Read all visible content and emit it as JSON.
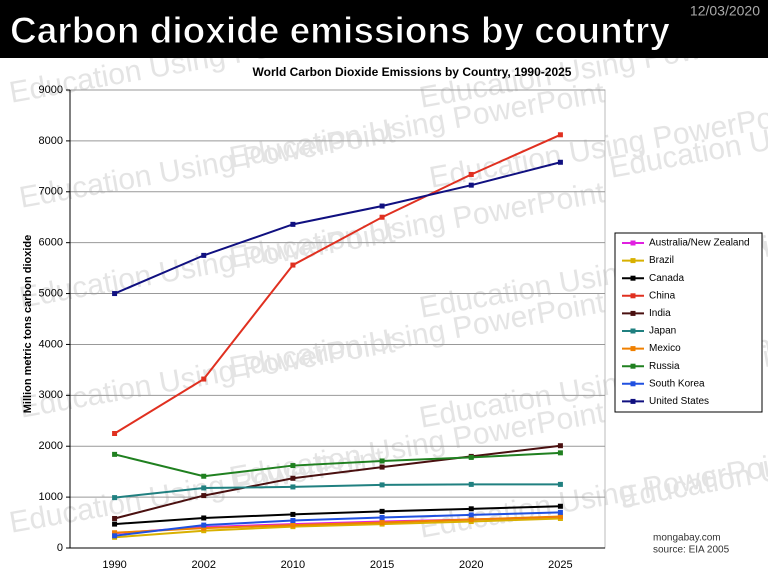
{
  "header": {
    "title": "Carbon dioxide emissions by country",
    "date": "12/03/2020"
  },
  "watermark": "Education Using PowerPoint",
  "chart_data": {
    "type": "line",
    "title": "World Carbon Dioxide Emissions by Country, 1990-2025",
    "y_label": "Million metric tons carbon dioxide",
    "notes": [
      "mongabay.com",
      "source: EIA 2005"
    ],
    "categories": [
      "1990",
      "2002",
      "2010",
      "2015",
      "2020",
      "2025"
    ],
    "ylim": [
      0,
      9000
    ],
    "yticks": [
      0,
      1000,
      2000,
      3000,
      4000,
      5000,
      6000,
      7000,
      8000,
      9000
    ],
    "grid": true,
    "legend": "right",
    "series": [
      {
        "name": "Australia/New Zealand",
        "color": "#e020e0",
        "values": [
          290,
          410,
          470,
          520,
          560,
          610
        ]
      },
      {
        "name": "Brazil",
        "color": "#d8b000",
        "values": [
          210,
          340,
          420,
          470,
          520,
          580
        ]
      },
      {
        "name": "Canada",
        "color": "#000000",
        "values": [
          470,
          590,
          660,
          720,
          770,
          820
        ]
      },
      {
        "name": "China",
        "color": "#e03020",
        "values": [
          2250,
          3320,
          5560,
          6500,
          7340,
          8120
        ]
      },
      {
        "name": "India",
        "color": "#4a1010",
        "values": [
          580,
          1030,
          1370,
          1590,
          1800,
          2010
        ]
      },
      {
        "name": "Japan",
        "color": "#208080",
        "values": [
          990,
          1180,
          1200,
          1240,
          1250,
          1250
        ]
      },
      {
        "name": "Mexico",
        "color": "#f08000",
        "values": [
          300,
          390,
          450,
          500,
          560,
          620
        ]
      },
      {
        "name": "Russia",
        "color": "#208020",
        "values": [
          1840,
          1410,
          1620,
          1710,
          1780,
          1870
        ]
      },
      {
        "name": "South Korea",
        "color": "#2050e0",
        "values": [
          240,
          450,
          540,
          600,
          650,
          700
        ]
      },
      {
        "name": "United States",
        "color": "#101080",
        "values": [
          5000,
          5750,
          6360,
          6720,
          7130,
          7580
        ]
      }
    ]
  }
}
